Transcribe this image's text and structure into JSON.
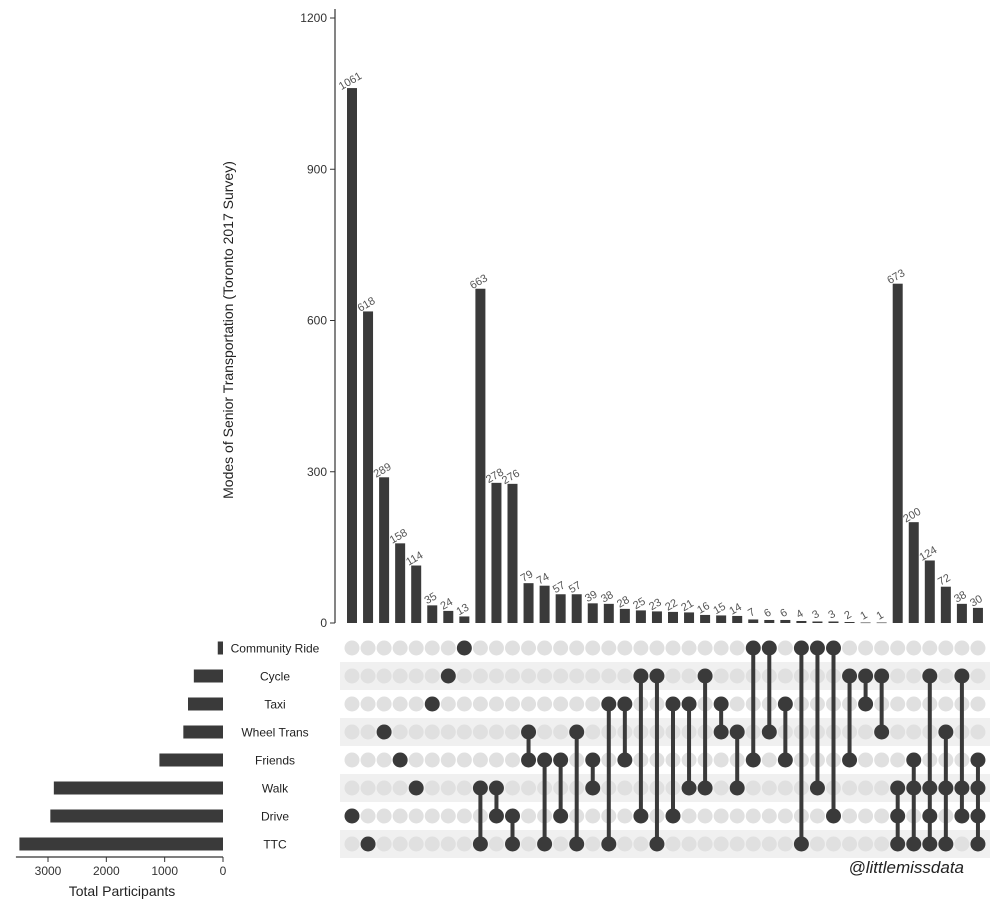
{
  "chart_data": {
    "type": "bar",
    "ylabel": "Modes of Senior Transportation (Toronto 2017 Survey)",
    "ylim": [
      0,
      1220
    ],
    "y_ticks": [
      0,
      300,
      600,
      900,
      1200
    ],
    "colors": {
      "bar": "#3a3a3a",
      "dot_on": "#3a3a3a",
      "dot_off": "#e0e0e0",
      "stripe": "#f0f0f0",
      "axis": "#333333",
      "text": "#333333",
      "label": "#555555"
    },
    "sets": [
      "Community Ride",
      "Cycle",
      "Taxi",
      "Wheel Trans",
      "Friends",
      "Walk",
      "Drive",
      "TTC"
    ],
    "set_sizes": {
      "xlabel": "Total Participants",
      "values": [
        90,
        500,
        600,
        680,
        1090,
        2900,
        2960,
        3490
      ],
      "ticks": [
        3000,
        2000,
        1000,
        0
      ],
      "xlim": [
        0,
        3550
      ]
    },
    "intersections": [
      {
        "value": 1061,
        "label": "1061",
        "members": [
          "Drive"
        ]
      },
      {
        "value": 618,
        "label": "618",
        "members": [
          "TTC"
        ]
      },
      {
        "value": 289,
        "label": "289",
        "members": [
          "Wheel Trans"
        ]
      },
      {
        "value": 158,
        "label": "158",
        "members": [
          "Friends"
        ]
      },
      {
        "value": 114,
        "label": "114",
        "members": [
          "Walk"
        ]
      },
      {
        "value": 35,
        "label": "35",
        "members": [
          "Taxi"
        ]
      },
      {
        "value": 24,
        "label": "24",
        "members": [
          "Cycle"
        ]
      },
      {
        "value": 13,
        "label": "13",
        "members": [
          "Community Ride"
        ]
      },
      {
        "value": 663,
        "label": "663",
        "members": [
          "Walk",
          "TTC"
        ]
      },
      {
        "value": 278,
        "label": "278",
        "members": [
          "Walk",
          "Drive"
        ]
      },
      {
        "value": 276,
        "label": "276",
        "members": [
          "Drive",
          "TTC"
        ]
      },
      {
        "value": 79,
        "label": "79",
        "members": [
          "Wheel Trans",
          "Friends"
        ]
      },
      {
        "value": 74,
        "label": "74",
        "members": [
          "Friends",
          "TTC"
        ]
      },
      {
        "value": 57,
        "label": "57",
        "members": [
          "Friends",
          "Drive"
        ]
      },
      {
        "value": 57,
        "label": "57",
        "members": [
          "Wheel Trans",
          "TTC"
        ]
      },
      {
        "value": 39,
        "label": "39",
        "members": [
          "Friends",
          "Walk"
        ]
      },
      {
        "value": 38,
        "label": "38",
        "members": [
          "Taxi",
          "TTC"
        ]
      },
      {
        "value": 28,
        "label": "28",
        "members": [
          "Taxi",
          "Friends"
        ]
      },
      {
        "value": 25,
        "label": "25",
        "members": [
          "Cycle",
          "Drive"
        ]
      },
      {
        "value": 23,
        "label": "23",
        "members": [
          "Cycle",
          "TTC"
        ]
      },
      {
        "value": 22,
        "label": "22",
        "members": [
          "Taxi",
          "Drive"
        ]
      },
      {
        "value": 21,
        "label": "21",
        "members": [
          "Taxi",
          "Walk"
        ]
      },
      {
        "value": 16,
        "label": "16",
        "members": [
          "Cycle",
          "Walk"
        ]
      },
      {
        "value": 15,
        "label": "15",
        "members": [
          "Taxi",
          "Wheel Trans"
        ]
      },
      {
        "value": 14,
        "label": "14",
        "members": [
          "Wheel Trans",
          "Walk"
        ]
      },
      {
        "value": 7,
        "label": "7",
        "members": [
          "Community Ride",
          "Friends"
        ]
      },
      {
        "value": 6,
        "label": "6",
        "members": [
          "Community Ride",
          "Wheel Trans"
        ]
      },
      {
        "value": 6,
        "label": "6",
        "members": [
          "Taxi",
          "Friends"
        ]
      },
      {
        "value": 4,
        "label": "4",
        "members": [
          "Community Ride",
          "TTC"
        ]
      },
      {
        "value": 3,
        "label": "3",
        "members": [
          "Community Ride",
          "Walk"
        ]
      },
      {
        "value": 3,
        "label": "3",
        "members": [
          "Community Ride",
          "Drive"
        ]
      },
      {
        "value": 2,
        "label": "2",
        "members": [
          "Cycle",
          "Friends"
        ]
      },
      {
        "value": 1,
        "label": "1",
        "members": [
          "Cycle",
          "Taxi"
        ]
      },
      {
        "value": 1,
        "label": "1",
        "members": [
          "Cycle",
          "Wheel Trans"
        ]
      },
      {
        "value": 673,
        "label": "673",
        "members": [
          "Walk",
          "Drive",
          "TTC"
        ]
      },
      {
        "value": 200,
        "label": "200",
        "members": [
          "Friends",
          "Walk",
          "TTC"
        ]
      },
      {
        "value": 124,
        "label": "124",
        "members": [
          "Cycle",
          "Walk",
          "Drive",
          "TTC"
        ]
      },
      {
        "value": 72,
        "label": "72",
        "members": [
          "Wheel Trans",
          "Walk",
          "TTC"
        ]
      },
      {
        "value": 38,
        "label": "38",
        "members": [
          "Cycle",
          "Walk",
          "Drive"
        ]
      },
      {
        "value": 30,
        "label": "30",
        "members": [
          "Friends",
          "Walk",
          "Drive",
          "TTC"
        ]
      }
    ]
  },
  "watermark": "@littlemissdata"
}
